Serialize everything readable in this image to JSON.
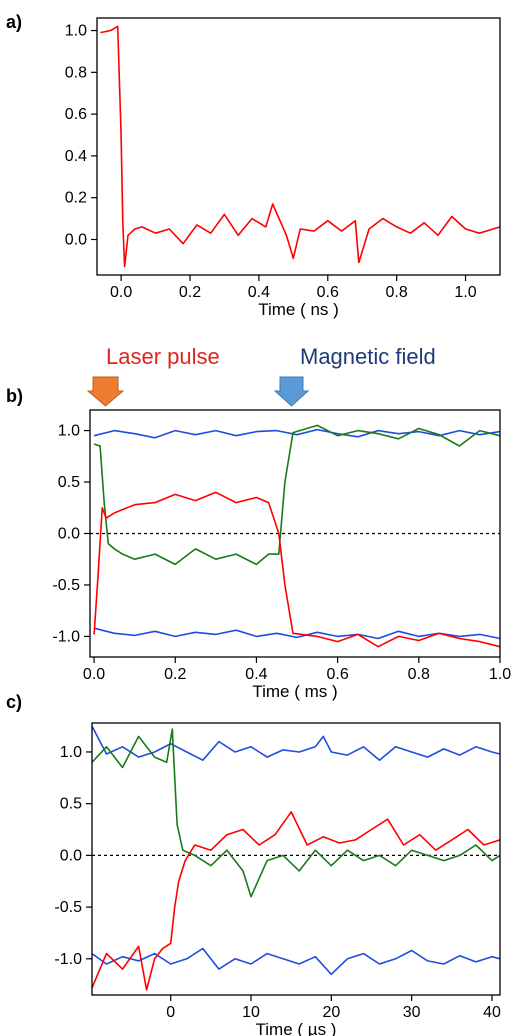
{
  "figure": {
    "panel_labels": [
      "a)",
      "b)",
      "c)"
    ],
    "annotations": [
      {
        "text": "Laser pulse",
        "color": "#e0231c"
      },
      {
        "text": "Magnetic field",
        "color": "#1f3b7a"
      }
    ],
    "arrow_colors": {
      "laser": "#ed7d31",
      "field": "#5b9bd5"
    }
  },
  "chart_data": [
    {
      "type": "line",
      "panel": "a)",
      "xlabel": "Time ( ns )",
      "ylabel": "",
      "xlim": [
        -0.07,
        1.1
      ],
      "ylim": [
        -0.17,
        1.06
      ],
      "xticks": [
        0.0,
        0.2,
        0.4,
        0.6,
        0.8,
        1.0
      ],
      "xtick_labels": [
        "0.0",
        "0.2",
        "0.4",
        "0.6",
        "0.8",
        "1.0"
      ],
      "yticks": [
        0.0,
        0.2,
        0.4,
        0.6,
        0.8,
        1.0
      ],
      "ytick_labels": [
        "0.0",
        "0.2",
        "0.4",
        "0.6",
        "0.8",
        "1.0"
      ],
      "zero_line": false,
      "series": [
        {
          "color": "#ff0000",
          "x": [
            -0.06,
            -0.03,
            -0.01,
            0.0,
            0.005,
            0.01,
            0.02,
            0.04,
            0.06,
            0.1,
            0.14,
            0.18,
            0.22,
            0.26,
            0.3,
            0.34,
            0.38,
            0.42,
            0.44,
            0.48,
            0.5,
            0.52,
            0.56,
            0.6,
            0.64,
            0.68,
            0.69,
            0.72,
            0.76,
            0.8,
            0.84,
            0.88,
            0.92,
            0.96,
            1.0,
            1.04,
            1.08,
            1.1
          ],
          "y": [
            0.99,
            1.0,
            1.02,
            0.5,
            0.08,
            -0.13,
            0.02,
            0.05,
            0.06,
            0.03,
            0.05,
            -0.02,
            0.07,
            0.03,
            0.12,
            0.02,
            0.1,
            0.06,
            0.17,
            0.02,
            -0.09,
            0.05,
            0.04,
            0.09,
            0.04,
            0.09,
            -0.11,
            0.05,
            0.1,
            0.06,
            0.03,
            0.08,
            0.02,
            0.11,
            0.05,
            0.03,
            0.05,
            0.06
          ]
        }
      ]
    },
    {
      "type": "line",
      "panel": "b)",
      "xlabel": "Time ( ms )",
      "ylabel": "",
      "xlim": [
        -0.01,
        1.0
      ],
      "ylim": [
        -1.2,
        1.2
      ],
      "xticks": [
        0.0,
        0.2,
        0.4,
        0.6,
        0.8,
        1.0
      ],
      "xtick_labels": [
        "0.0",
        "0.2",
        "0.4",
        "0.6",
        "0.8",
        "1.0"
      ],
      "yticks": [
        -1.0,
        -0.5,
        0.0,
        0.5,
        1.0
      ],
      "ytick_labels": [
        "-1.0",
        "-0.5",
        "0.0",
        "0.5",
        "1.0"
      ],
      "zero_line": true,
      "series": [
        {
          "color": "#1f4de0",
          "x": [
            0.0,
            0.05,
            0.1,
            0.15,
            0.2,
            0.25,
            0.3,
            0.35,
            0.4,
            0.45,
            0.5,
            0.55,
            0.6,
            0.65,
            0.7,
            0.75,
            0.8,
            0.85,
            0.9,
            0.95,
            1.0
          ],
          "y": [
            0.95,
            1.0,
            0.97,
            0.93,
            1.0,
            0.96,
            1.0,
            0.95,
            0.99,
            1.0,
            0.96,
            1.01,
            0.97,
            0.94,
            1.0,
            0.97,
            0.99,
            0.95,
            1.0,
            0.96,
            0.99
          ]
        },
        {
          "color": "#1f4de0",
          "x": [
            0.0,
            0.05,
            0.1,
            0.15,
            0.2,
            0.25,
            0.3,
            0.35,
            0.4,
            0.45,
            0.5,
            0.55,
            0.6,
            0.65,
            0.7,
            0.75,
            0.8,
            0.85,
            0.9,
            0.95,
            1.0
          ],
          "y": [
            -0.92,
            -0.97,
            -0.99,
            -0.95,
            -1.0,
            -0.96,
            -0.98,
            -0.94,
            -1.0,
            -0.97,
            -1.01,
            -0.96,
            -1.0,
            -0.98,
            -1.02,
            -0.95,
            -1.0,
            -0.97,
            -1.0,
            -0.98,
            -1.02
          ]
        },
        {
          "color": "#1a7a1a",
          "x": [
            0.0,
            0.015,
            0.025,
            0.035,
            0.05,
            0.07,
            0.1,
            0.15,
            0.2,
            0.25,
            0.3,
            0.35,
            0.4,
            0.43,
            0.455,
            0.47,
            0.49,
            0.55,
            0.6,
            0.65,
            0.7,
            0.75,
            0.8,
            0.85,
            0.9,
            0.95,
            1.0
          ],
          "y": [
            0.87,
            0.85,
            0.3,
            -0.1,
            -0.15,
            -0.2,
            -0.25,
            -0.2,
            -0.3,
            -0.15,
            -0.25,
            -0.2,
            -0.3,
            -0.2,
            -0.2,
            0.5,
            0.98,
            1.05,
            0.95,
            1.0,
            0.97,
            0.92,
            1.02,
            0.96,
            0.85,
            1.0,
            0.95
          ]
        },
        {
          "color": "#ff0000",
          "x": [
            0.0,
            0.01,
            0.02,
            0.03,
            0.05,
            0.1,
            0.15,
            0.2,
            0.25,
            0.3,
            0.35,
            0.4,
            0.43,
            0.455,
            0.47,
            0.49,
            0.55,
            0.6,
            0.65,
            0.7,
            0.75,
            0.8,
            0.85,
            0.9,
            0.95,
            1.0
          ],
          "y": [
            -0.98,
            -0.4,
            0.25,
            0.15,
            0.2,
            0.28,
            0.3,
            0.38,
            0.32,
            0.4,
            0.3,
            0.35,
            0.3,
            0.0,
            -0.5,
            -0.97,
            -1.0,
            -1.05,
            -0.98,
            -1.1,
            -1.0,
            -1.04,
            -0.97,
            -1.02,
            -1.05,
            -1.1
          ]
        }
      ]
    },
    {
      "type": "line",
      "panel": "c)",
      "xlabel": "Time ( µs )",
      "ylabel": "",
      "xlim": [
        -9.8,
        41
      ],
      "ylim": [
        -1.35,
        1.28
      ],
      "xticks": [
        0,
        10,
        20,
        30,
        40
      ],
      "xtick_labels": [
        "0",
        "10",
        "20",
        "30",
        "40"
      ],
      "yticks": [
        -1.0,
        -0.5,
        0.0,
        0.5,
        1.0
      ],
      "ytick_labels": [
        "-1.0",
        "-0.5",
        "0.0",
        "0.5",
        "1.0"
      ],
      "zero_line": true,
      "series": [
        {
          "color": "#1f4de0",
          "x": [
            -9.8,
            -8,
            -6,
            -4,
            -2,
            0,
            2,
            4,
            6,
            8,
            10,
            12,
            14,
            16,
            18,
            19,
            20,
            22,
            24,
            26,
            28,
            30,
            32,
            34,
            36,
            38,
            40,
            41
          ],
          "y": [
            1.25,
            0.98,
            1.05,
            0.95,
            1.0,
            1.08,
            1.0,
            0.92,
            1.1,
            1.0,
            1.05,
            0.95,
            1.02,
            1.0,
            1.05,
            1.15,
            1.0,
            0.97,
            1.05,
            0.92,
            1.05,
            1.0,
            0.95,
            1.03,
            0.97,
            1.05,
            1.0,
            0.98
          ]
        },
        {
          "color": "#1f4de0",
          "x": [
            -9.8,
            -8,
            -6,
            -4,
            -2,
            0,
            2,
            4,
            6,
            8,
            10,
            12,
            14,
            16,
            18,
            20,
            22,
            24,
            26,
            28,
            30,
            32,
            34,
            36,
            38,
            40,
            41
          ],
          "y": [
            -0.95,
            -1.05,
            -0.98,
            -1.02,
            -0.95,
            -1.05,
            -1.0,
            -0.9,
            -1.1,
            -1.0,
            -1.05,
            -0.95,
            -1.0,
            -1.05,
            -0.98,
            -1.15,
            -1.0,
            -0.95,
            -1.05,
            -1.0,
            -0.92,
            -1.02,
            -1.05,
            -0.97,
            -1.03,
            -0.98,
            -1.0
          ]
        },
        {
          "color": "#1a7a1a",
          "x": [
            -9.8,
            -8,
            -6,
            -4,
            -2,
            -0.5,
            0.2,
            0.8,
            1.5,
            3,
            5,
            7,
            9,
            10,
            12,
            14,
            16,
            18,
            20,
            22,
            24,
            26,
            28,
            30,
            32,
            34,
            36,
            38,
            40,
            41
          ],
          "y": [
            0.9,
            1.05,
            0.85,
            1.15,
            0.95,
            0.9,
            1.22,
            0.3,
            0.05,
            0.0,
            -0.1,
            0.05,
            -0.15,
            -0.4,
            -0.05,
            0.0,
            -0.15,
            0.05,
            -0.1,
            0.05,
            -0.05,
            0.0,
            -0.1,
            0.05,
            0.0,
            -0.05,
            0.0,
            0.1,
            -0.05,
            0.0
          ]
        },
        {
          "color": "#ff0000",
          "x": [
            -9.8,
            -8,
            -6,
            -4,
            -3,
            -2,
            -1,
            0,
            0.5,
            1,
            1.8,
            3,
            5,
            7,
            9,
            11,
            13,
            15,
            17,
            19,
            21,
            23,
            25,
            27,
            29,
            31,
            33,
            35,
            37,
            39,
            41
          ],
          "y": [
            -1.28,
            -0.95,
            -1.1,
            -0.88,
            -1.3,
            -1.0,
            -0.9,
            -0.85,
            -0.5,
            -0.25,
            -0.05,
            0.1,
            0.05,
            0.2,
            0.25,
            0.1,
            0.2,
            0.42,
            0.1,
            0.18,
            0.12,
            0.15,
            0.25,
            0.35,
            0.1,
            0.2,
            0.05,
            0.15,
            0.25,
            0.1,
            0.15
          ]
        }
      ]
    }
  ]
}
